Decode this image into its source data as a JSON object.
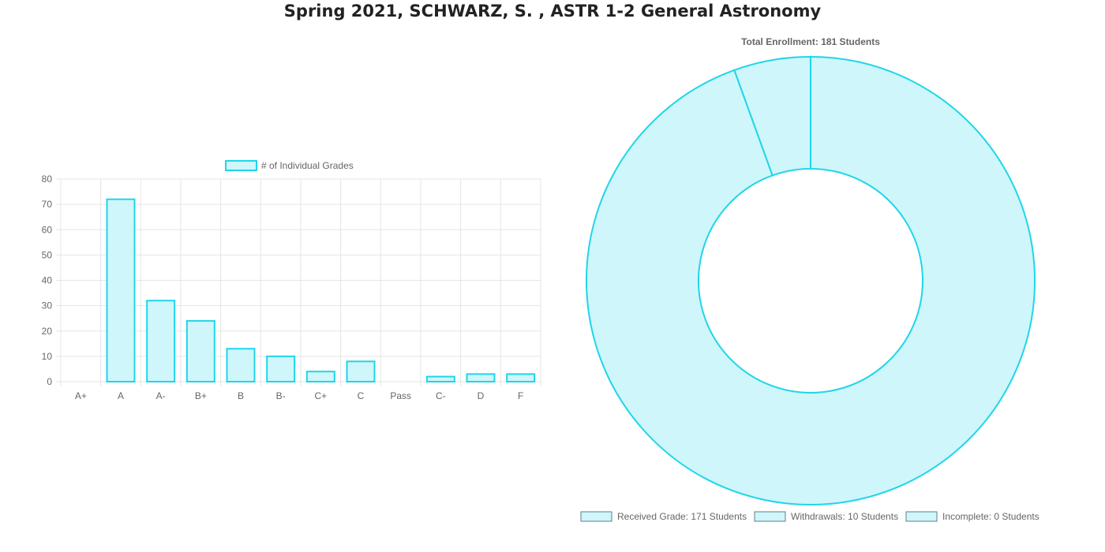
{
  "page": {
    "title": "Spring 2021, SCHWARZ, S. , ASTR 1-2 General Astronomy"
  },
  "colors": {
    "fill": "#cff6fa",
    "stroke": "#1ed6ea",
    "grid": "#e5e5e5",
    "text": "#666666",
    "legend_box_stroke": "#607d8b"
  },
  "chart_data": [
    {
      "type": "bar",
      "legend": "# of Individual Grades",
      "legend_position": "top",
      "categories": [
        "A+",
        "A",
        "A-",
        "B+",
        "B",
        "B-",
        "C+",
        "C",
        "Pass",
        "C-",
        "D",
        "F"
      ],
      "series": [
        {
          "name": "# of Individual Grades",
          "values": [
            0,
            72,
            32,
            24,
            13,
            10,
            4,
            8,
            0,
            2,
            3,
            3
          ]
        }
      ],
      "ylim": [
        0,
        80
      ],
      "yticks": [
        0,
        10,
        20,
        30,
        40,
        50,
        60,
        70,
        80
      ],
      "grid": true
    },
    {
      "type": "pie",
      "variant": "doughnut",
      "title": "Total Enrollment: 181 Students",
      "legend_position": "bottom",
      "slices": [
        {
          "label": "Received Grade: 171 Students",
          "value": 171
        },
        {
          "label": "Withdrawals: 10 Students",
          "value": 10
        },
        {
          "label": "Incomplete: 0 Students",
          "value": 0
        }
      ]
    }
  ]
}
